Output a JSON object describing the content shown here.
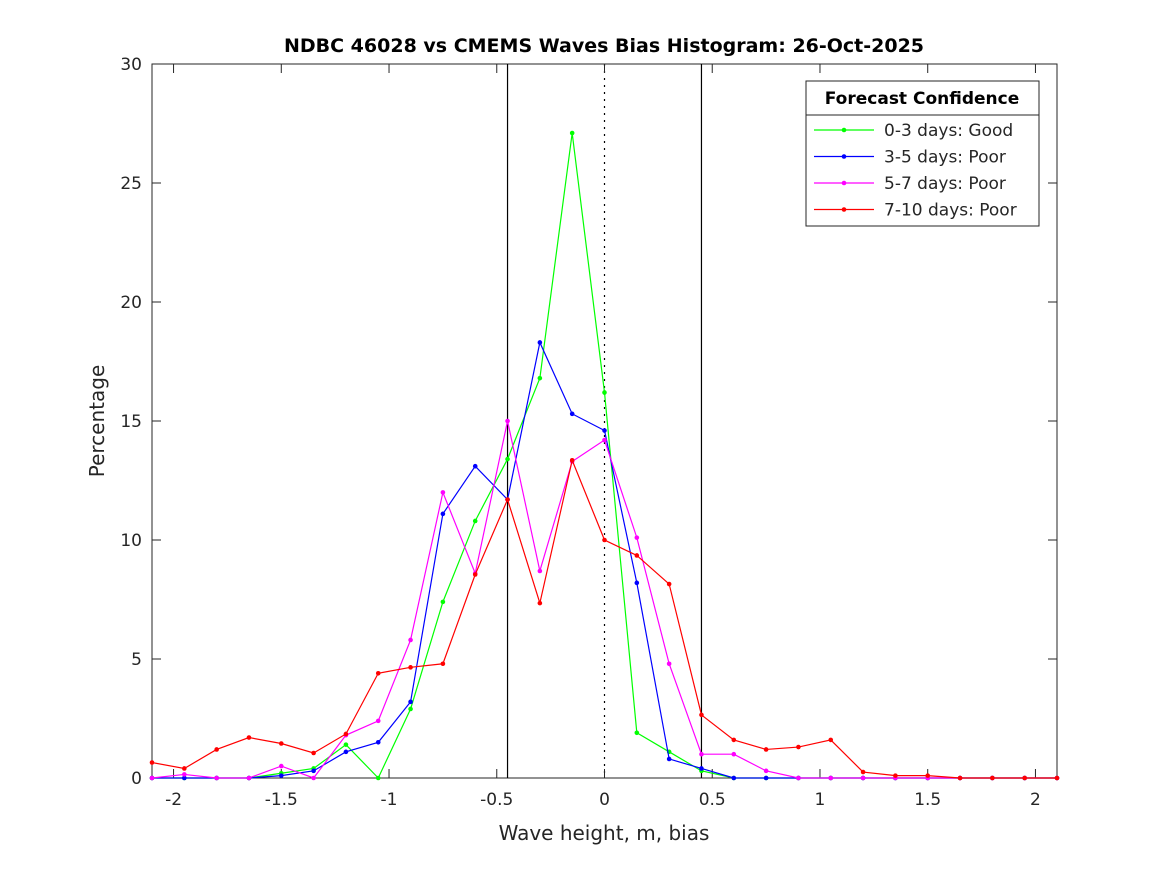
{
  "chart_data": {
    "type": "line",
    "title": "NDBC 46028 vs CMEMS Waves Bias Histogram: 26-Oct-2025",
    "xlabel": "Wave height, m, bias",
    "ylabel": "Percentage",
    "xlim": [
      -2.1,
      2.1
    ],
    "ylim": [
      0,
      30
    ],
    "xticks": [
      -2,
      -1.5,
      -1,
      -0.5,
      0,
      0.5,
      1,
      1.5,
      2
    ],
    "xtick_labels": [
      "-2",
      "-1.5",
      "-1",
      "-0.5",
      "0",
      "0.5",
      "1",
      "1.5",
      "2"
    ],
    "yticks": [
      0,
      5,
      10,
      15,
      20,
      25,
      30
    ],
    "ytick_labels": [
      "0",
      "5",
      "10",
      "15",
      "20",
      "25",
      "30"
    ],
    "reference_lines": {
      "solid": [
        -0.45,
        0.45
      ],
      "dotted": [
        0
      ]
    },
    "legend": {
      "title": "Forecast Confidence",
      "placement": "top-right"
    },
    "x": [
      -2.1,
      -1.95,
      -1.8,
      -1.65,
      -1.5,
      -1.35,
      -1.2,
      -1.05,
      -0.9,
      -0.75,
      -0.6,
      -0.45,
      -0.3,
      -0.15,
      0,
      0.15,
      0.3,
      0.45,
      0.6,
      0.75,
      0.9,
      1.05,
      1.2,
      1.35,
      1.5,
      1.65,
      1.8,
      1.95,
      2.1
    ],
    "series": [
      {
        "name": "0-3 days: Good",
        "color": "#00ff00",
        "values": [
          0,
          0,
          0,
          0,
          0.2,
          0.4,
          1.4,
          0,
          2.9,
          7.4,
          10.8,
          13.4,
          16.8,
          27.1,
          16.2,
          1.9,
          1.1,
          0.3,
          0,
          0,
          0,
          0,
          0,
          0,
          0,
          0,
          0,
          0,
          0
        ]
      },
      {
        "name": "3-5 days: Poor",
        "color": "#0000ff",
        "values": [
          0,
          0,
          0,
          0,
          0.1,
          0.3,
          1.1,
          1.5,
          3.2,
          11.1,
          13.1,
          11.7,
          18.3,
          15.3,
          14.6,
          8.2,
          0.8,
          0.4,
          0,
          0,
          0,
          0,
          0,
          0,
          0,
          0,
          0,
          0,
          0
        ]
      },
      {
        "name": "5-7 days: Poor",
        "color": "#ff00ff",
        "values": [
          0,
          0.15,
          0,
          0,
          0.5,
          0,
          1.8,
          2.4,
          5.8,
          12.0,
          8.6,
          15.0,
          8.7,
          13.3,
          14.2,
          10.1,
          4.8,
          1.0,
          1.0,
          0.3,
          0,
          0,
          0,
          0,
          0,
          0,
          0,
          0,
          0
        ]
      },
      {
        "name": "7-10 days: Poor",
        "color": "#ff0000",
        "values": [
          0.65,
          0.4,
          1.2,
          1.7,
          1.45,
          1.05,
          1.85,
          4.4,
          4.65,
          4.8,
          8.55,
          11.7,
          7.35,
          13.35,
          10.0,
          9.35,
          8.15,
          2.65,
          1.6,
          1.2,
          1.3,
          1.6,
          0.25,
          0.1,
          0.1,
          0,
          0,
          0,
          0
        ]
      }
    ]
  }
}
